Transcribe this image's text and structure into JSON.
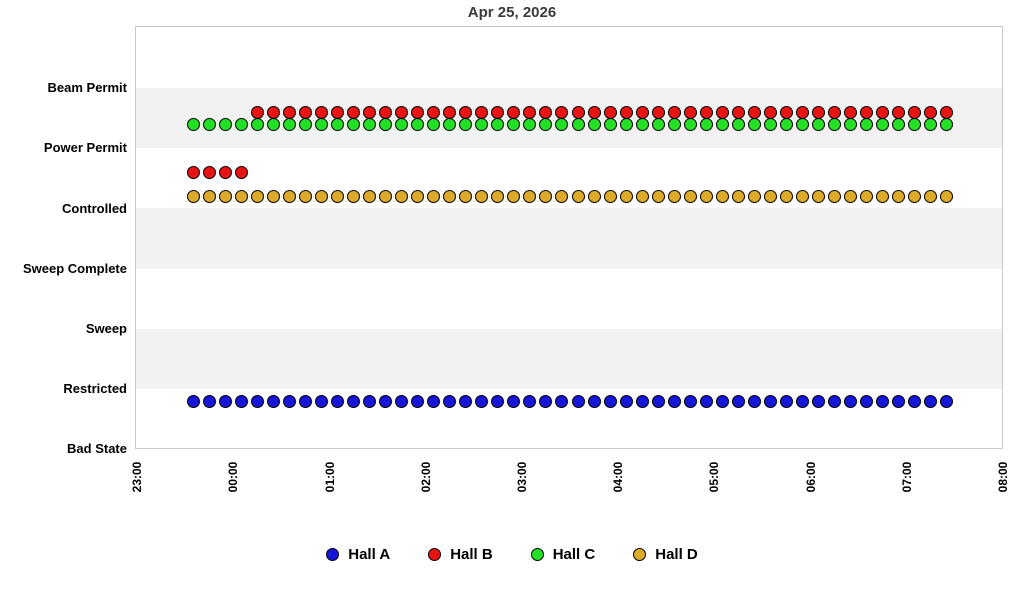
{
  "chart_data": {
    "type": "scatter",
    "title": "Apr 25, 2026",
    "x_axis": {
      "start": "23:00",
      "end": "08:00",
      "tick_interval_minutes": 60,
      "tick_labels": [
        "23:00",
        "00:00",
        "01:00",
        "02:00",
        "03:00",
        "04:00",
        "05:00",
        "06:00",
        "07:00",
        "08:00"
      ]
    },
    "y_axis": {
      "categories_top_to_bottom": [
        "Beam Permit",
        "Power Permit",
        "Controlled",
        "Sweep Complete",
        "Sweep",
        "Restricted",
        "Bad State"
      ]
    },
    "sampling_interval_minutes": 10,
    "series": [
      {
        "name": "Hall A",
        "color": "#1616d9",
        "segments": [
          {
            "state": "Restricted",
            "from": "23:35",
            "to": "07:25"
          }
        ]
      },
      {
        "name": "Hall B",
        "color": "#e81313",
        "segments": [
          {
            "state": "Power Permit",
            "from": "23:35",
            "to": "00:05"
          },
          {
            "state": "Beam Permit",
            "from": "00:15",
            "to": "07:25"
          }
        ]
      },
      {
        "name": "Hall C",
        "color": "#24e024",
        "segments": [
          {
            "state": "Beam Permit",
            "from": "23:35",
            "to": "07:25"
          }
        ]
      },
      {
        "name": "Hall D",
        "color": "#dca928",
        "segments": [
          {
            "state": "Power Permit",
            "from": "23:35",
            "to": "07:25"
          }
        ]
      }
    ],
    "legend": {
      "position": "bottom",
      "items": [
        "Hall A",
        "Hall B",
        "Hall C",
        "Hall D"
      ]
    },
    "style": {
      "band_color": "#f2f2f2",
      "plot_border_color": "#c9c9c9",
      "grid_alternating_bands": true,
      "marker_outline_color": "#000000"
    }
  }
}
